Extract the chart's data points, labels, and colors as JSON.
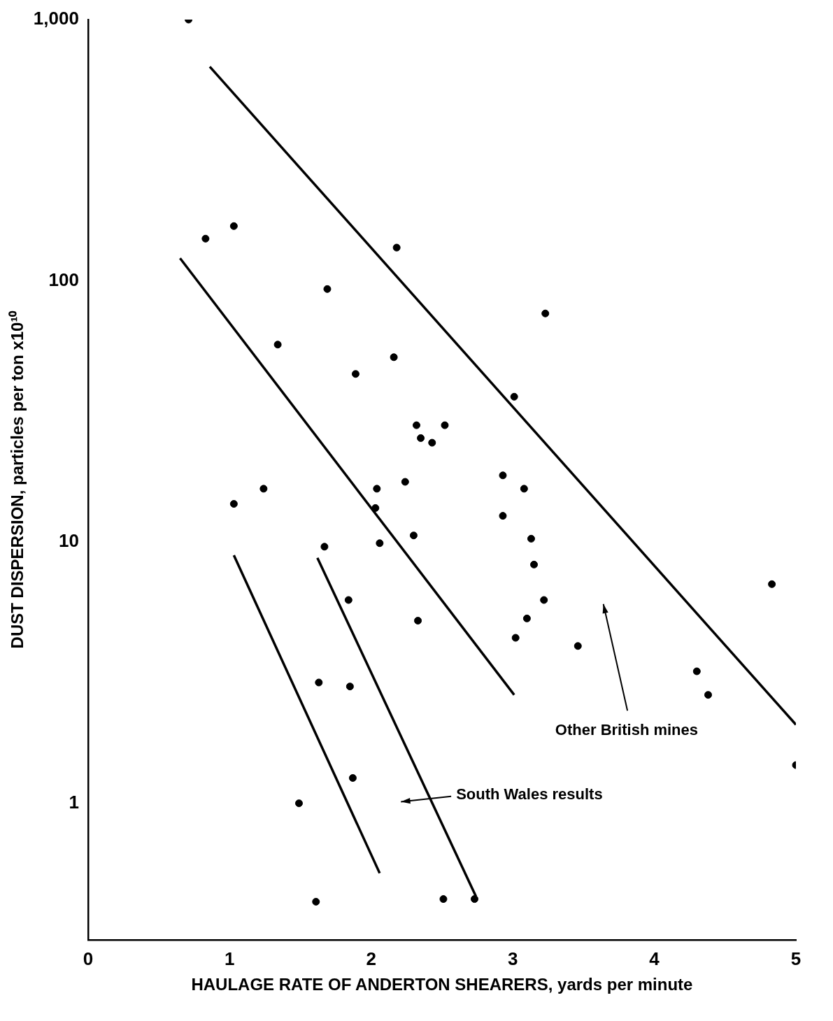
{
  "chart_data": {
    "type": "scatter",
    "xlabel": "HAULAGE RATE OF ANDERTON SHEARERS, yards per minute",
    "ylabel": "DUST DISPERSION, particles per ton x10¹⁰",
    "log": "y",
    "grid": false,
    "legend": false,
    "marker": "circle",
    "xlim": [
      0,
      5
    ],
    "xticks": [
      0,
      1,
      2,
      3,
      4,
      5
    ],
    "ylim": [
      0.3,
      1000
    ],
    "yticks": [
      1,
      10,
      100,
      {
        "value": 1000,
        "label": "1,000"
      }
    ],
    "series": [
      {
        "color": "#000000",
        "x": [
          0.71,
          0.83,
          1.03,
          2.18,
          1.69,
          3.23,
          1.34,
          2.16,
          1.89,
          3.01,
          2.32,
          2.52,
          2.35,
          2.43,
          2.24,
          2.93,
          3.08,
          2.04,
          1.24,
          1.03,
          2.03,
          2.93,
          2.3,
          3.13,
          2.06,
          1.67,
          3.15,
          1.84,
          3.22,
          4.83,
          2.33,
          3.1,
          3.02,
          3.46,
          4.3,
          4.38,
          1.63,
          1.85,
          5.0,
          1.87,
          1.49,
          1.61,
          2.51,
          2.73
        ],
        "values": [
          1000,
          145,
          162,
          134,
          93,
          75,
          57,
          51,
          44,
          36,
          28,
          28,
          25,
          24,
          17,
          18,
          16,
          16,
          16,
          14,
          13.5,
          12.6,
          10.6,
          10.3,
          9.9,
          9.6,
          8.2,
          6,
          6,
          6.9,
          5,
          5.1,
          4.3,
          4,
          3.2,
          2.6,
          2.9,
          2.8,
          1.4,
          1.25,
          1,
          0.42,
          0.43,
          0.43
        ]
      },
      {
        "type": "line",
        "color": "#000000",
        "marker": "none",
        "x": [
          0.86,
          5.0
        ],
        "values": [
          660,
          2.0
        ]
      },
      {
        "type": "line",
        "color": "#000000",
        "marker": "none",
        "x": [
          0.65,
          3.01
        ],
        "values": [
          122,
          2.6
        ]
      },
      {
        "type": "line",
        "color": "#000000",
        "marker": "none",
        "x": [
          1.03,
          2.06
        ],
        "values": [
          8.9,
          0.54
        ]
      },
      {
        "type": "line",
        "color": "#000000",
        "marker": "none",
        "x": [
          1.62,
          2.74
        ],
        "values": [
          8.7,
          0.44
        ]
      }
    ],
    "annotations": [
      "Other British mines",
      "South Wales results"
    ]
  }
}
